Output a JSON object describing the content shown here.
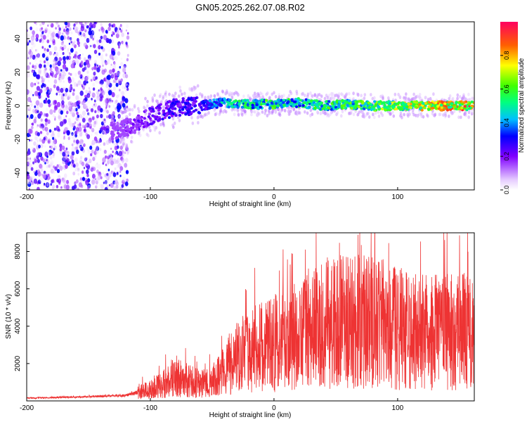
{
  "chart_data": [
    {
      "type": "heatmap",
      "title": "GN05.2025.262.07.08.R02",
      "xlabel": "Height of straight line (km)",
      "ylabel": "Frequency (Hz)",
      "xlim": [
        -200,
        162
      ],
      "ylim": [
        -50,
        50
      ],
      "x_ticks": [
        -200,
        -100,
        0,
        100
      ],
      "y_ticks": [
        -40,
        -20,
        0,
        20,
        40
      ],
      "colorbar": {
        "label": "Normalized spectral amplitude",
        "range": [
          0,
          1
        ],
        "ticks": [
          "0.0",
          "0.2",
          "0.4",
          "0.6",
          "0.8"
        ]
      },
      "ridge": {
        "x": [
          -130,
          -115,
          -100,
          -80,
          -60,
          -40,
          -20,
          0,
          20,
          40,
          60,
          80,
          100,
          120,
          140,
          162
        ],
        "frequency": [
          -15,
          -12,
          -6,
          -1,
          0,
          2,
          1,
          1,
          2,
          0,
          1,
          0,
          0,
          0,
          0,
          0
        ],
        "amplitude": [
          0.15,
          0.2,
          0.25,
          0.3,
          0.3,
          0.5,
          0.55,
          0.6,
          0.55,
          0.6,
          0.6,
          0.65,
          0.7,
          0.8,
          0.85,
          0.9
        ]
      }
    },
    {
      "type": "line",
      "xlabel": "Height of straight line (km)",
      "ylabel": "SNR (10 * v/v)",
      "xlim": [
        -200,
        162
      ],
      "ylim": [
        0,
        9000
      ],
      "x_ticks": [
        -200,
        -100,
        0,
        100
      ],
      "y_ticks": [
        2000,
        4000,
        6000,
        8000
      ],
      "color": "#ee3333",
      "series": [
        {
          "name": "SNR",
          "x": [
            -200,
            -180,
            -160,
            -140,
            -120,
            -100,
            -90,
            -80,
            -70,
            -60,
            -50,
            -40,
            -30,
            -20,
            -10,
            0,
            10,
            20,
            30,
            40,
            50,
            60,
            70,
            80,
            90,
            100,
            110,
            120,
            130,
            140,
            150,
            162
          ],
          "y": [
            150,
            180,
            200,
            250,
            300,
            600,
            900,
            1300,
            1100,
            900,
            1000,
            1800,
            2300,
            2700,
            2900,
            3100,
            3300,
            3600,
            3900,
            4200,
            4300,
            4400,
            4300,
            4200,
            4100,
            3900,
            3700,
            3700,
            3700,
            3700,
            3750,
            3700
          ]
        }
      ]
    }
  ]
}
